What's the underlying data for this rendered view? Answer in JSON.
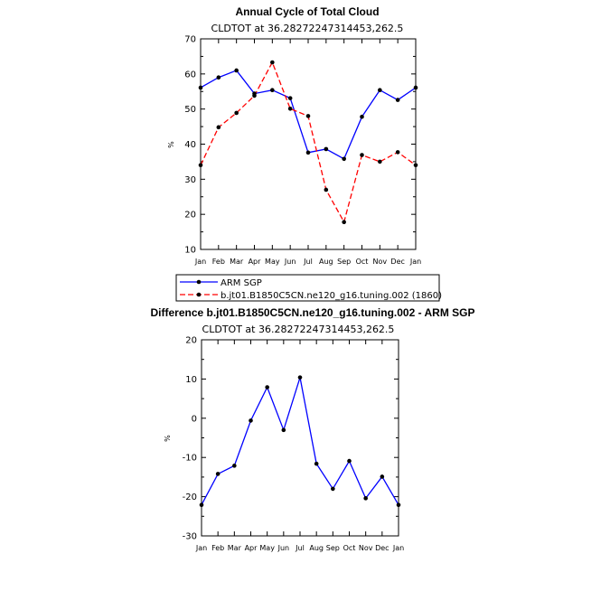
{
  "chart_data": [
    {
      "type": "line",
      "title": "Annual Cycle of Total Cloud",
      "subtitle": "CLDTOT at 36.28272247314453,262.5",
      "ylabel": "%",
      "xlabel": "",
      "categories": [
        "Jan",
        "Feb",
        "Mar",
        "Apr",
        "May",
        "Jun",
        "Jul",
        "Aug",
        "Sep",
        "Oct",
        "Nov",
        "Dec",
        "Jan"
      ],
      "ylim": [
        10,
        70
      ],
      "yticks": [
        10,
        20,
        30,
        40,
        50,
        60,
        70
      ],
      "series": [
        {
          "name": "ARM SGP",
          "color": "#0000ff",
          "dash": "solid",
          "values": [
            56.1,
            59.0,
            61.0,
            54.4,
            55.4,
            53.1,
            37.6,
            38.6,
            35.8,
            47.8,
            55.4,
            52.6,
            56.1
          ]
        },
        {
          "name": "b.jt01.B1850C5CN.ne120_g16.tuning.002 (1860)",
          "color": "#ff0000",
          "dash": "dashed",
          "values": [
            34.0,
            44.8,
            48.9,
            53.8,
            63.3,
            50.1,
            48.0,
            27.0,
            17.8,
            36.9,
            35.0,
            37.7,
            34.0
          ]
        }
      ],
      "legend": "below"
    },
    {
      "type": "line",
      "title": "Difference b.jt01.B1850C5CN.ne120_g16.tuning.002 - ARM SGP",
      "subtitle": "CLDTOT at 36.28272247314453,262.5",
      "ylabel": "%",
      "xlabel": "",
      "categories": [
        "Jan",
        "Feb",
        "Mar",
        "Apr",
        "May",
        "Jun",
        "Jul",
        "Aug",
        "Sep",
        "Oct",
        "Nov",
        "Dec",
        "Jan"
      ],
      "ylim": [
        -30,
        20
      ],
      "yticks": [
        -30,
        -20,
        -10,
        0,
        10,
        20
      ],
      "series": [
        {
          "name": "Difference",
          "color": "#0000ff",
          "dash": "solid",
          "values": [
            -22.1,
            -14.2,
            -12.1,
            -0.6,
            7.9,
            -3.0,
            10.4,
            -11.6,
            -18.0,
            -10.9,
            -20.4,
            -14.9,
            -22.1
          ]
        }
      ]
    }
  ]
}
